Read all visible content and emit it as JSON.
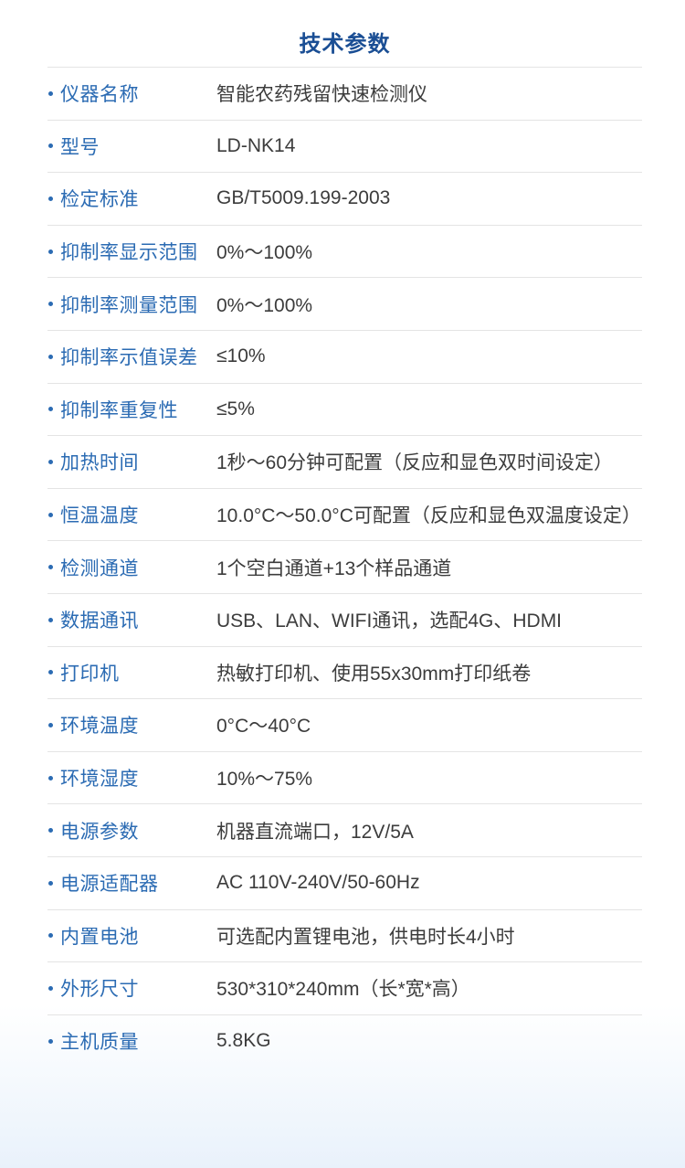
{
  "page": {
    "title": "技术参数"
  },
  "theme": {
    "title_color": "#1a4e94",
    "label_color": "#2b6bb3",
    "value_color": "#3c3c3c",
    "divider_color": "#e4e4e4",
    "bottom_fade_color": "#eef5fc"
  },
  "specs": [
    {
      "label": "仪器名称",
      "value": "智能农药残留快速检测仪"
    },
    {
      "label": "型号",
      "value": "LD-NK14"
    },
    {
      "label": "检定标准",
      "value": "GB/T5009.199-2003"
    },
    {
      "label": "抑制率显示范围",
      "value": "0%～100%"
    },
    {
      "label": "抑制率测量范围",
      "value": "0%～100%"
    },
    {
      "label": "抑制率示值误差",
      "value": "≤10%"
    },
    {
      "label": "抑制率重复性",
      "value": "≤5%"
    },
    {
      "label": "加热时间",
      "value": "1秒～60分钟可配置（反应和显色双时间设定）"
    },
    {
      "label": "恒温温度",
      "value": "10.0°C～50.0°C可配置（反应和显色双温度设定）"
    },
    {
      "label": "检测通道",
      "value": "1个空白通道+13个样品通道"
    },
    {
      "label": "数据通讯",
      "value": "USB、LAN、WIFI通讯，选配4G、HDMI"
    },
    {
      "label": "打印机",
      "value": "热敏打印机、使用55x30mm打印纸卷"
    },
    {
      "label": "环境温度",
      "value": "0°C～40°C"
    },
    {
      "label": "环境湿度",
      "value": "10%～75%"
    },
    {
      "label": "电源参数",
      "value": "机器直流端口，12V/5A"
    },
    {
      "label": "电源适配器",
      "value": "AC 110V-240V/50-60Hz"
    },
    {
      "label": "内置电池",
      "value": "可选配内置锂电池，供电时长4小时"
    },
    {
      "label": "外形尺寸",
      "value": "530*310*240mm（长*宽*高）"
    },
    {
      "label": "主机质量",
      "value": "5.8KG"
    }
  ]
}
